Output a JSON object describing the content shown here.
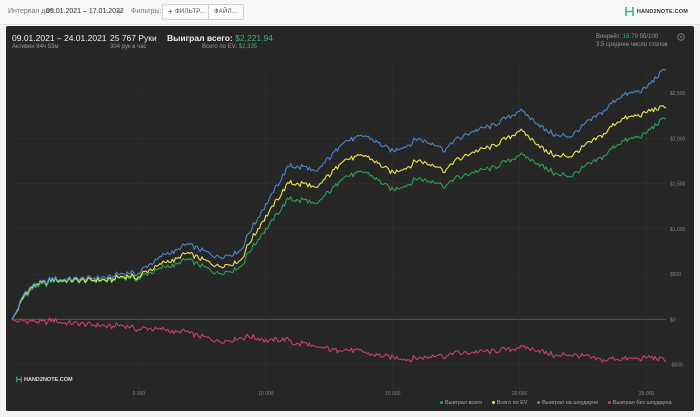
{
  "toolbar": {
    "interval_label": "Интервал дат:",
    "interval_value": "09.01.2021 – 17.01.2022",
    "filters_label": "Фильтры:",
    "filter_button": "ФИЛЬТР...",
    "file_button": "ФАЙЛ...",
    "brand": "HAND2NOTE.COM",
    "accent": "#3db27a"
  },
  "stats": {
    "date_range": "09.01.2021 – 24.01.2021",
    "active": "Активен 84ч 53м",
    "hands": "25 767 Руки",
    "hands_per_hour": "304 рук в час",
    "won_label": "Выиграл всего:",
    "won_value": "$2,221.94",
    "ev_label": "Всего по EV:",
    "ev_value": "$2,335",
    "winrate_label": "Винрейт:",
    "winrate_value": "16.79",
    "winrate_unit": "бб/100",
    "avg_tables": "3.5 среднее число столов"
  },
  "watermark": "HAND2NOTE.COM",
  "chart_data": {
    "type": "line",
    "x_tick_labels": [
      "5 000",
      "10 000",
      "15 000",
      "20 000",
      "25 000"
    ],
    "x_ticks": [
      5000,
      10000,
      15000,
      20000,
      25000
    ],
    "y_tick_labels": [
      "-$500",
      "$0",
      "$500",
      "$1,000",
      "$1,500",
      "$2,000",
      "$2,500"
    ],
    "y_ticks": [
      -500,
      0,
      500,
      1000,
      1500,
      2000,
      2500
    ],
    "xlim": [
      0,
      25767
    ],
    "ylim": [
      -550,
      2800
    ],
    "grid": true,
    "legend_position": "bottom-right",
    "x": [
      0,
      500,
      1000,
      2000,
      3000,
      4000,
      5000,
      6000,
      7000,
      8000,
      9000,
      10000,
      11000,
      12000,
      13000,
      14000,
      15000,
      16000,
      17000,
      18000,
      19000,
      20000,
      21000,
      22000,
      23000,
      24000,
      25000,
      25767
    ],
    "series": [
      {
        "name": "Выиграл всего",
        "color": "#2e9e5b",
        "values": [
          0,
          280,
          380,
          420,
          420,
          430,
          460,
          560,
          650,
          520,
          580,
          1010,
          1350,
          1280,
          1560,
          1620,
          1430,
          1560,
          1480,
          1600,
          1680,
          1830,
          1660,
          1560,
          1750,
          1950,
          2060,
          2220
        ]
      },
      {
        "name": "Всего по EV",
        "color": "#e8e84a",
        "values": [
          0,
          300,
          400,
          430,
          430,
          440,
          480,
          610,
          720,
          600,
          650,
          1150,
          1530,
          1460,
          1750,
          1800,
          1620,
          1760,
          1650,
          1820,
          1920,
          2100,
          1850,
          1780,
          1990,
          2200,
          2290,
          2335
        ]
      },
      {
        "name": "Выиграл на шоудауне",
        "color": "#4a86c8",
        "values": [
          0,
          320,
          410,
          440,
          450,
          470,
          520,
          700,
          820,
          700,
          760,
          1280,
          1720,
          1640,
          1950,
          2020,
          1860,
          2000,
          1880,
          2050,
          2150,
          2320,
          2080,
          2000,
          2240,
          2460,
          2560,
          2760
        ]
      },
      {
        "name": "Выиграл без шоудауна",
        "color": "#c8406e",
        "values": [
          0,
          0,
          -20,
          -40,
          -60,
          -80,
          -100,
          -130,
          -160,
          -230,
          -200,
          -220,
          -240,
          -300,
          -340,
          -380,
          -420,
          -430,
          -400,
          -380,
          -350,
          -300,
          -380,
          -410,
          -440,
          -450,
          -420,
          -470
        ]
      }
    ]
  }
}
